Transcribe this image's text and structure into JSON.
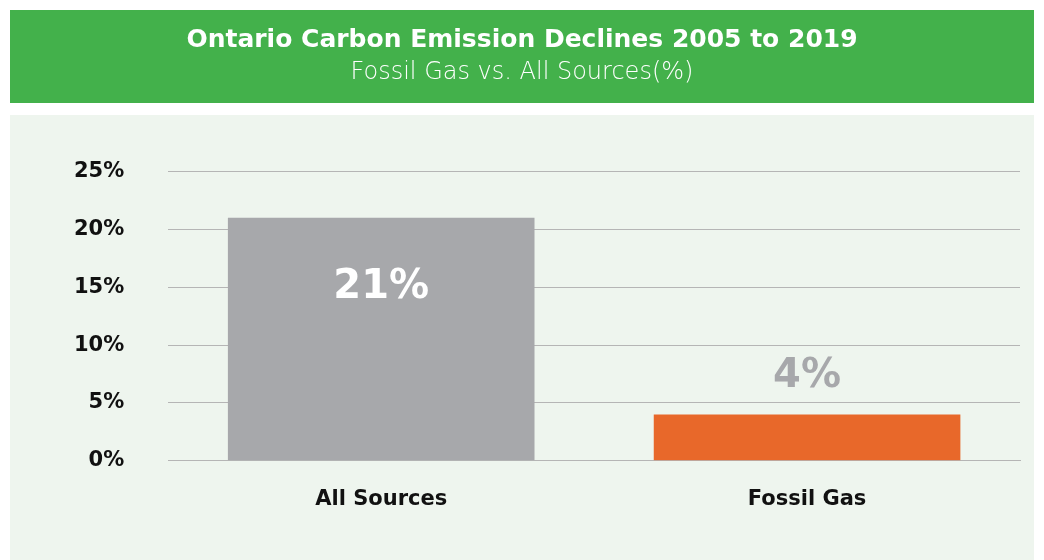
{
  "chart_data": {
    "type": "bar",
    "title": "Ontario Carbon Emission Declines 2005 to 2019",
    "subtitle": "Fossil Gas vs. All Sources(%)",
    "categories": [
      "All Sources",
      "Fossil Gas"
    ],
    "values": [
      21,
      4
    ],
    "colors": [
      "#a7a8ab",
      "#e8682a"
    ],
    "value_labels": [
      "21%",
      "4%"
    ],
    "ylim": [
      0,
      25
    ],
    "yticks": [
      {
        "value": 0,
        "label": "0%"
      },
      {
        "value": 5,
        "label": "5%"
      },
      {
        "value": 10,
        "label": "10%"
      },
      {
        "value": 15,
        "label": "15%"
      },
      {
        "value": 20,
        "label": "20%"
      },
      {
        "value": 25,
        "label": "25%"
      }
    ],
    "grid": "y",
    "legend": false
  }
}
